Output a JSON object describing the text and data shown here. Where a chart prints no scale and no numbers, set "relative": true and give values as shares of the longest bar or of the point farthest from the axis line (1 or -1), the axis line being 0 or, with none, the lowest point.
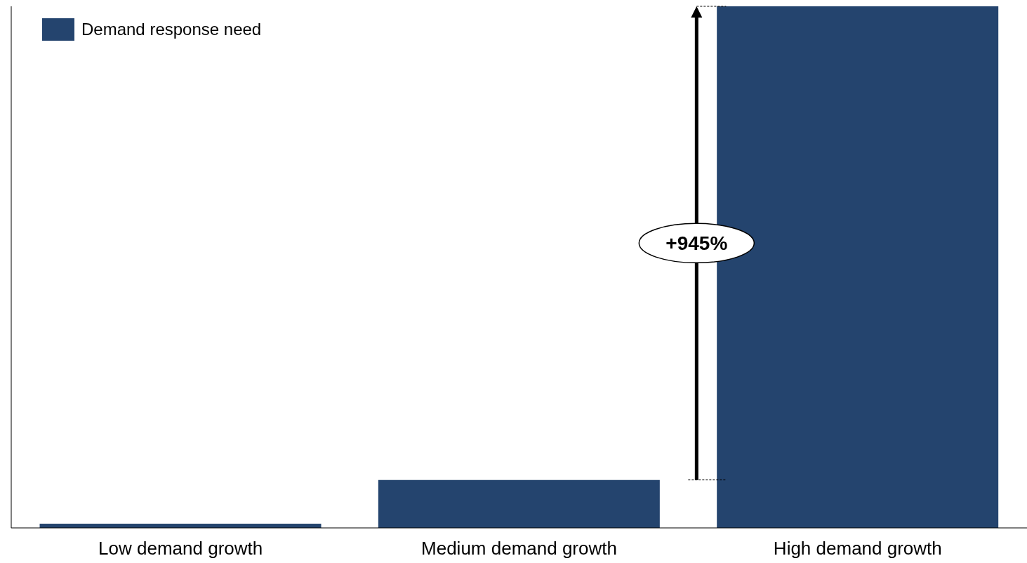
{
  "chart_data": {
    "type": "bar",
    "relative": true,
    "categories": [
      "Low demand growth",
      "Medium demand growth",
      "High demand growth"
    ],
    "series": [
      {
        "name": "Demand response need",
        "color": "#24446e",
        "values": [
          0.008,
          0.092,
          1
        ]
      }
    ],
    "annotations": [
      "+945%"
    ],
    "legend": "top left",
    "grid": false
  }
}
